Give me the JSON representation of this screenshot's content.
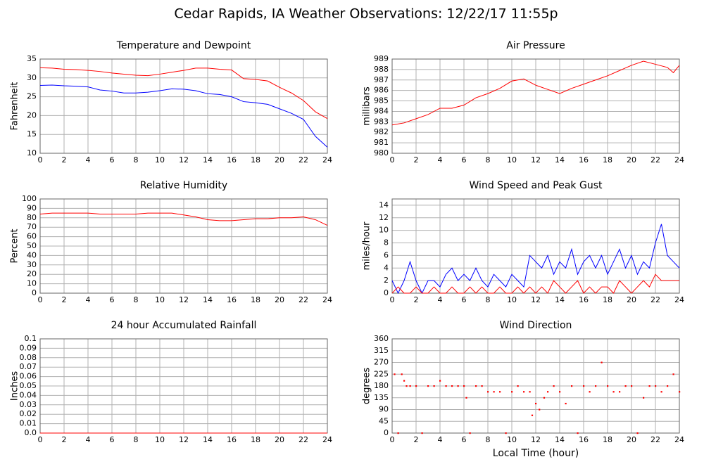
{
  "title": "Cedar Rapids, IA Weather Observations: 12/22/17 11:55p",
  "chart_data": [
    {
      "type": "line",
      "title": "Temperature and Dewpoint",
      "ylabel": "Fahrenheit",
      "x": [
        0,
        1,
        2,
        3,
        4,
        5,
        6,
        7,
        8,
        9,
        10,
        11,
        12,
        13,
        14,
        15,
        16,
        17,
        18,
        19,
        20,
        21,
        22,
        23,
        24
      ],
      "series": [
        {
          "color": "#ff0000",
          "values": [
            32.7,
            32.6,
            32.3,
            32.2,
            32,
            31.7,
            31.3,
            31,
            30.7,
            30.6,
            31,
            31.5,
            32,
            32.6,
            32.6,
            32.3,
            32.1,
            29.8,
            29.6,
            29.2,
            27.5,
            26,
            24,
            21,
            19.2
          ]
        },
        {
          "color": "#0000ff",
          "values": [
            28,
            28.1,
            27.9,
            27.8,
            27.6,
            26.8,
            26.5,
            26,
            26,
            26.2,
            26.6,
            27.1,
            27,
            26.6,
            25.8,
            25.6,
            25,
            23.7,
            23.4,
            23,
            21.8,
            20.6,
            19,
            14.5,
            11.6
          ]
        }
      ],
      "xlim": [
        0,
        24
      ],
      "xticks": [
        0,
        2,
        4,
        6,
        8,
        10,
        12,
        14,
        16,
        18,
        20,
        22,
        24
      ],
      "ylim": [
        10,
        35
      ],
      "yticks": [
        10,
        15,
        20,
        25,
        30,
        35
      ],
      "grid": true
    },
    {
      "type": "line",
      "title": "Air Pressure",
      "ylabel": "millibars",
      "x": [
        0,
        1,
        2,
        3,
        4,
        5,
        6,
        7,
        8,
        9,
        10,
        11,
        12,
        13,
        14,
        15,
        16,
        17,
        18,
        19,
        20,
        21,
        22,
        23,
        23.5,
        24
      ],
      "series": [
        {
          "color": "#ff0000",
          "values": [
            982.7,
            982.9,
            983.3,
            983.7,
            984.3,
            984.3,
            984.6,
            985.3,
            985.7,
            986.2,
            986.9,
            987.1,
            986.5,
            986.1,
            985.7,
            986.2,
            986.6,
            987,
            987.4,
            987.9,
            988.4,
            988.8,
            988.5,
            988.2,
            987.7,
            988.4
          ]
        }
      ],
      "xlim": [
        0,
        24
      ],
      "xticks": [
        0,
        2,
        4,
        6,
        8,
        10,
        12,
        14,
        16,
        18,
        20,
        22,
        24
      ],
      "ylim": [
        980,
        989
      ],
      "yticks": [
        980,
        981,
        982,
        983,
        984,
        985,
        986,
        987,
        988,
        989
      ],
      "grid": true
    },
    {
      "type": "line",
      "title": "Relative Humidity",
      "ylabel": "Percent",
      "x": [
        0,
        1,
        2,
        3,
        4,
        5,
        6,
        7,
        8,
        9,
        10,
        11,
        12,
        13,
        14,
        15,
        16,
        17,
        18,
        19,
        20,
        21,
        22,
        23,
        24
      ],
      "series": [
        {
          "color": "#ff0000",
          "values": [
            84,
            85,
            85,
            85,
            85,
            84,
            84,
            84,
            84,
            85,
            85,
            85,
            83,
            81,
            78,
            77,
            77,
            78,
            79,
            79,
            80,
            80,
            81,
            78,
            72
          ]
        }
      ],
      "xlim": [
        0,
        24
      ],
      "xticks": [
        0,
        2,
        4,
        6,
        8,
        10,
        12,
        14,
        16,
        18,
        20,
        22,
        24
      ],
      "ylim": [
        0,
        100
      ],
      "yticks": [
        0,
        10,
        20,
        30,
        40,
        50,
        60,
        70,
        80,
        90,
        100
      ],
      "grid": true
    },
    {
      "type": "line",
      "title": "Wind Speed and Peak Gust",
      "ylabel": "miles/hour",
      "x": [
        0,
        0.5,
        1,
        1.5,
        2,
        2.5,
        3,
        3.5,
        4,
        4.5,
        5,
        5.5,
        6,
        6.5,
        7,
        7.5,
        8,
        8.5,
        9,
        9.5,
        10,
        10.5,
        11,
        11.5,
        12,
        12.5,
        13,
        13.5,
        14,
        14.5,
        15,
        15.5,
        16,
        16.5,
        17,
        17.5,
        18,
        18.5,
        19,
        19.5,
        20,
        20.5,
        21,
        21.5,
        22,
        22.5,
        23,
        23.5,
        24
      ],
      "series": [
        {
          "color": "#0000ff",
          "values": [
            2,
            0,
            2,
            5,
            2,
            0,
            2,
            2,
            1,
            3,
            4,
            2,
            3,
            2,
            4,
            2,
            1,
            3,
            2,
            1,
            3,
            2,
            1,
            6,
            5,
            4,
            6,
            3,
            5,
            4,
            7,
            3,
            5,
            6,
            4,
            6,
            3,
            5,
            7,
            4,
            6,
            3,
            5,
            4,
            8,
            11,
            6,
            5,
            4
          ]
        },
        {
          "color": "#ff0000",
          "values": [
            0,
            1,
            0,
            0,
            1,
            0,
            0,
            1,
            0,
            0,
            1,
            0,
            0,
            1,
            0,
            1,
            0,
            0,
            1,
            0,
            0,
            1,
            0,
            1,
            0,
            1,
            0,
            2,
            1,
            0,
            1,
            2,
            0,
            1,
            0,
            1,
            1,
            0,
            2,
            1,
            0,
            1,
            2,
            1,
            3,
            2,
            2,
            2,
            2
          ]
        }
      ],
      "xlim": [
        0,
        24
      ],
      "xticks": [
        0,
        2,
        4,
        6,
        8,
        10,
        12,
        14,
        16,
        18,
        20,
        22,
        24
      ],
      "ylim": [
        0,
        15
      ],
      "yticks": [
        0,
        2,
        4,
        6,
        8,
        10,
        12,
        14
      ],
      "grid": true
    },
    {
      "type": "line",
      "title": "24 hour Accumulated Rainfall",
      "ylabel": "Inches",
      "x": [
        0,
        24
      ],
      "series": [
        {
          "color": "#ff0000",
          "values": [
            0,
            0
          ]
        }
      ],
      "xlim": [
        0,
        24
      ],
      "xticks": [
        0,
        2,
        4,
        6,
        8,
        10,
        12,
        14,
        16,
        18,
        20,
        22,
        24
      ],
      "ylim": [
        0,
        0.1
      ],
      "yticks": [
        {
          "value": 0,
          "label": "0.0"
        },
        0.01,
        0.02,
        0.03,
        0.04,
        0.05,
        0.06,
        0.07,
        0.08,
        0.09,
        0.1
      ],
      "grid": true
    },
    {
      "type": "scatter",
      "title": "Wind Direction",
      "ylabel": "degrees",
      "xlabel": "Local Time (hour)",
      "x": [
        0.2,
        0.5,
        0.8,
        1.0,
        1.2,
        1.5,
        2.0,
        2.5,
        3.0,
        3.5,
        4.0,
        4.5,
        5.0,
        5.5,
        6.0,
        6.2,
        6.5,
        7.0,
        7.5,
        8.0,
        8.5,
        9.0,
        9.5,
        10.0,
        10.5,
        11.0,
        11.5,
        11.7,
        12.0,
        12.3,
        12.7,
        13.0,
        13.5,
        14.0,
        14.5,
        15.0,
        15.5,
        16.0,
        16.5,
        17.0,
        17.5,
        18.0,
        18.5,
        19.0,
        19.5,
        20.0,
        20.5,
        21.0,
        21.5,
        22.0,
        22.5,
        23.0,
        23.5,
        24.0
      ],
      "series": [
        {
          "color": "#ff0000",
          "values": [
            225,
            0,
            225,
            200,
            180,
            180,
            180,
            0,
            180,
            180,
            200,
            180,
            180,
            180,
            180,
            135,
            0,
            180,
            180,
            158,
            158,
            158,
            0,
            158,
            180,
            158,
            158,
            68,
            113,
            90,
            135,
            158,
            180,
            158,
            113,
            180,
            0,
            180,
            158,
            180,
            270,
            180,
            158,
            158,
            180,
            180,
            0,
            135,
            180,
            180,
            158,
            180,
            225,
            158
          ]
        }
      ],
      "xlim": [
        0,
        24
      ],
      "xticks": [
        0,
        2,
        4,
        6,
        8,
        10,
        12,
        14,
        16,
        18,
        20,
        22,
        24
      ],
      "ylim": [
        0,
        360
      ],
      "yticks": [
        0,
        45,
        90,
        135,
        180,
        225,
        270,
        315,
        360
      ],
      "grid": true
    }
  ]
}
